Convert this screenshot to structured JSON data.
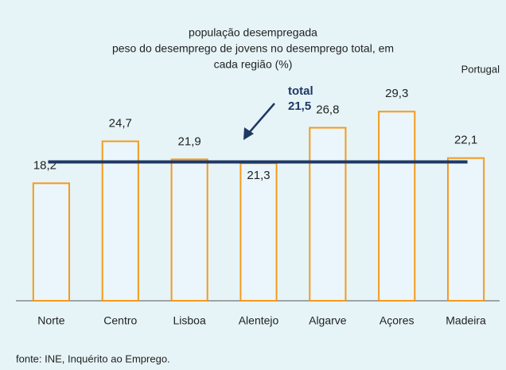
{
  "chart_data": {
    "type": "bar",
    "title": [
      "população desempregada",
      "peso do desemprego de jovens no desemprego total, em",
      "cada região (%)"
    ],
    "region_label": "Portugal",
    "categories": [
      "Norte",
      "Centro",
      "Lisboa",
      "Alentejo",
      "Algarve",
      "Açores",
      "Madeira"
    ],
    "values": [
      18.2,
      24.7,
      21.9,
      21.3,
      26.8,
      29.3,
      22.1
    ],
    "value_labels": [
      "18,2",
      "24,7",
      "21,9",
      "21,3",
      "26,8",
      "29,3",
      "22,1"
    ],
    "color": "#f59a1c",
    "ylim": [
      0,
      35
    ],
    "reference_line": {
      "name": "total",
      "value": 21.5,
      "value_label": "21,5",
      "color": "#1f3864"
    },
    "source": "fonte: INE, Inquérito ao Emprego."
  }
}
